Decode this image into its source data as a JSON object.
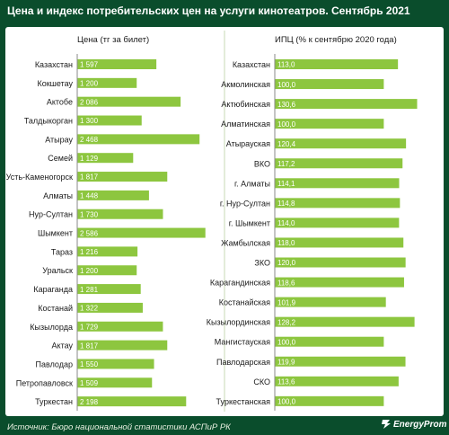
{
  "title": "Цена и индекс потребительских цен на услуги кинотеатров. Сентябрь 2021",
  "source": "Источник: Бюро национальной статистики АСПиР РК",
  "brand": "EnergyProm",
  "colors": {
    "background": "#0a4d2c",
    "panel": "#ffffff",
    "bar": "#8dc63f",
    "bar_text": "#ffffff",
    "divider": "#c7d8b5"
  },
  "chart_data": [
    {
      "type": "bar",
      "orientation": "horizontal",
      "title": "Цена (тг за билет)",
      "categories": [
        "Казахстан",
        "Кокшетау",
        "Актобе",
        "Талдыкорган",
        "Атырау",
        "Семей",
        "Усть-Каменогорск",
        "Алматы",
        "Нур-Султан",
        "Шымкент",
        "Тараз",
        "Уральск",
        "Караганда",
        "Костанай",
        "Кызылорда",
        "Актау",
        "Павлодар",
        "Петропавловск",
        "Туркестан"
      ],
      "values": [
        1597,
        1200,
        2086,
        1300,
        2468,
        1129,
        1817,
        1448,
        1730,
        2586,
        1216,
        1200,
        1281,
        1322,
        1729,
        1817,
        1550,
        1509,
        2198
      ],
      "labels": [
        "1 597",
        "1 200",
        "2 086",
        "1 300",
        "2 468",
        "1 129",
        "1 817",
        "1 448",
        "1 730",
        "2 586",
        "1 216",
        "1 200",
        "1 281",
        "1 322",
        "1 729",
        "1 817",
        "1 550",
        "1 509",
        "2 198"
      ],
      "xlim": [
        0,
        2700
      ]
    },
    {
      "type": "bar",
      "orientation": "horizontal",
      "title": "ИПЦ (% к сентябрю 2020 года)",
      "categories": [
        "Казахстан",
        "Акмолинская",
        "Актюбинская",
        "Алматинская",
        "Атырауская",
        "ВКО",
        "г. Алматы",
        "г. Нур-Султан",
        "г. Шымкент",
        "Жамбылская",
        "ЗКО",
        "Карагандинская",
        "Костанайская",
        "Кызылординская",
        "Мангистауская",
        "Павлодарская",
        "СКО",
        "Туркестанская"
      ],
      "values": [
        113.0,
        100.0,
        130.6,
        100.0,
        120.4,
        117.2,
        114.1,
        114.8,
        114.0,
        118.0,
        120.0,
        118.6,
        101.9,
        128.2,
        100.0,
        119.9,
        113.6,
        100.0
      ],
      "labels": [
        "113,0",
        "100,0",
        "130,6",
        "100,0",
        "120,4",
        "117,2",
        "114,1",
        "114,8",
        "114,0",
        "118,0",
        "120,0",
        "118,6",
        "101,9",
        "128,2",
        "100,0",
        "119,9",
        "113,6",
        "100,0"
      ],
      "xlim": [
        0,
        145
      ]
    }
  ]
}
